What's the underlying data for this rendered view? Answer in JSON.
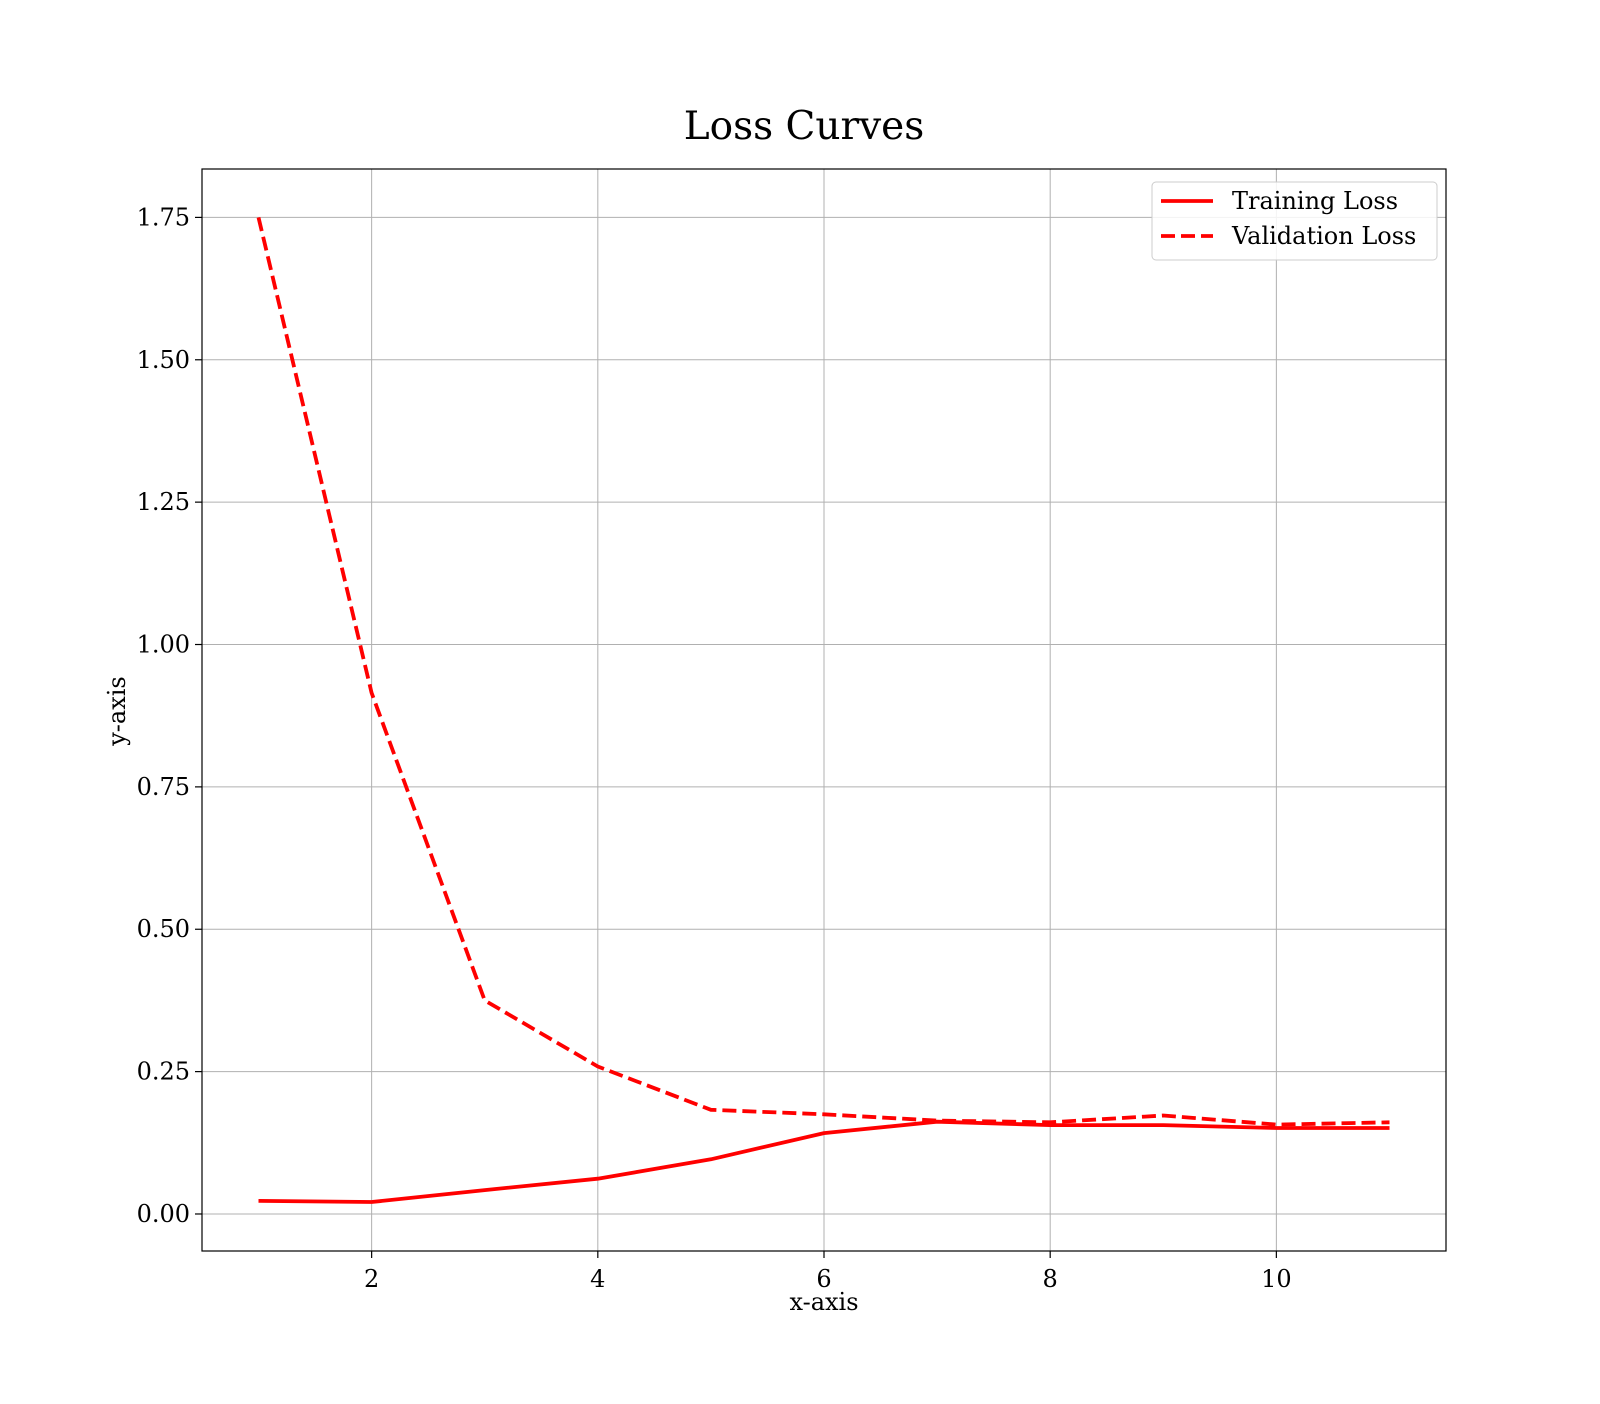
{
  "chart_data": {
    "type": "line",
    "title": "Loss Curves",
    "xlabel": "x-axis",
    "ylabel": "y-axis",
    "xlim": [
      0.5,
      11.5
    ],
    "ylim": [
      -0.065,
      1.835
    ],
    "xticks": [
      2,
      4,
      6,
      8,
      10
    ],
    "xtick_labels": [
      "2",
      "4",
      "6",
      "8",
      "10"
    ],
    "yticks": [
      0.0,
      0.25,
      0.5,
      0.75,
      1.0,
      1.25,
      1.5,
      1.75
    ],
    "ytick_labels": [
      "0.00",
      "0.25",
      "0.50",
      "0.75",
      "1.00",
      "1.25",
      "1.50",
      "1.75"
    ],
    "grid": true,
    "legend_position": "top-right",
    "x": [
      1,
      2,
      3,
      4,
      5,
      6,
      7,
      8,
      9,
      10,
      11
    ],
    "series": [
      {
        "name": "Training Loss",
        "style": "solid",
        "color": "#ff0000",
        "values": [
          0.023,
          0.021,
          0.042,
          0.062,
          0.096,
          0.142,
          0.162,
          0.156,
          0.156,
          0.151,
          0.151
        ]
      },
      {
        "name": "Validation Loss",
        "style": "dashed",
        "color": "#ff0000",
        "values": [
          1.75,
          0.915,
          0.375,
          0.259,
          0.183,
          0.175,
          0.164,
          0.161,
          0.173,
          0.157,
          0.161
        ]
      }
    ]
  }
}
